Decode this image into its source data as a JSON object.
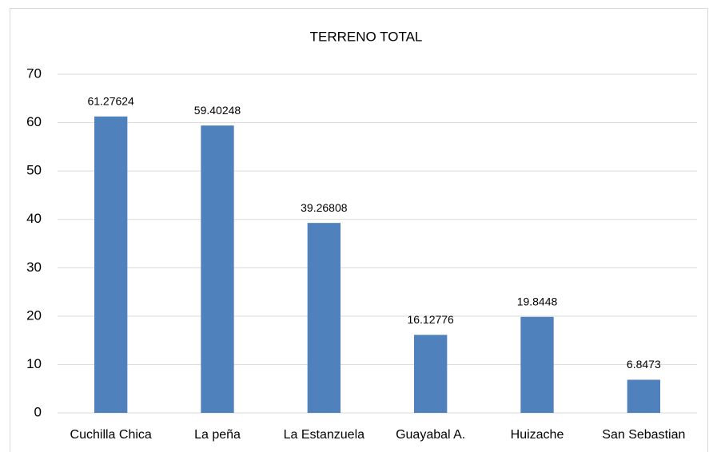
{
  "chart_data": {
    "type": "bar",
    "title": "TERRENO TOTAL",
    "categories": [
      "Cuchilla Chica",
      "La peña",
      "La Estanzuela",
      "Guayabal A.",
      "Huizache",
      "San Sebastian"
    ],
    "values": [
      61.27624,
      59.40248,
      39.26808,
      16.12776,
      19.8448,
      6.8473
    ],
    "color": "#4f81bd",
    "ylim": [
      0,
      70
    ],
    "yticks": [
      0,
      10,
      20,
      30,
      40,
      50,
      60,
      70
    ],
    "grid": true
  }
}
